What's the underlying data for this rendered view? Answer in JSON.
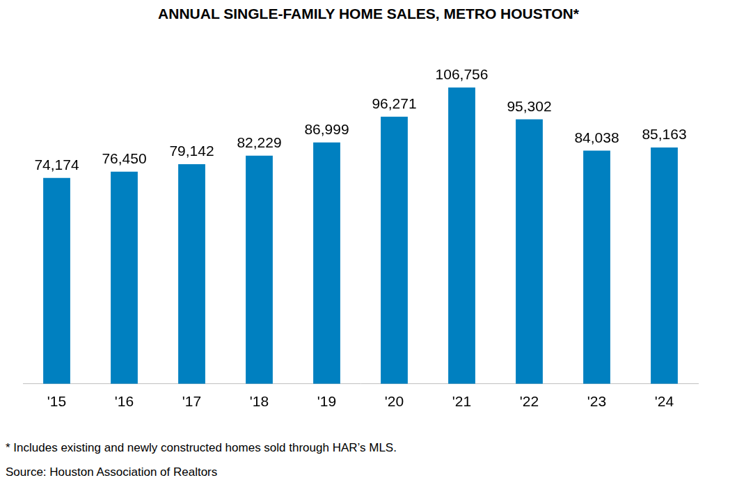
{
  "chart_data": {
    "type": "bar",
    "title": "ANNUAL SINGLE-FAMILY HOME SALES, METRO HOUSTON*",
    "notes": [
      "* Includes existing and newly constructed homes sold through HAR’s MLS.",
      "Source: Houston Association of Realtors"
    ],
    "categories": [
      "'15",
      "'16",
      "'17",
      "'18",
      "'19",
      "'20",
      "'21",
      "'22",
      "'23",
      "'24"
    ],
    "values": [
      74174,
      76450,
      79142,
      82229,
      86999,
      96271,
      106756,
      95302,
      84038,
      85163
    ],
    "value_labels": [
      "74,174",
      "76,450",
      "79,142",
      "82,229",
      "86,999",
      "96,271",
      "106,756",
      "95,302",
      "84,038",
      "85,163"
    ],
    "color": "#0080c0",
    "ylim": [
      0,
      120000
    ],
    "grid": false,
    "data_labels": true,
    "tick_labels": "x"
  }
}
